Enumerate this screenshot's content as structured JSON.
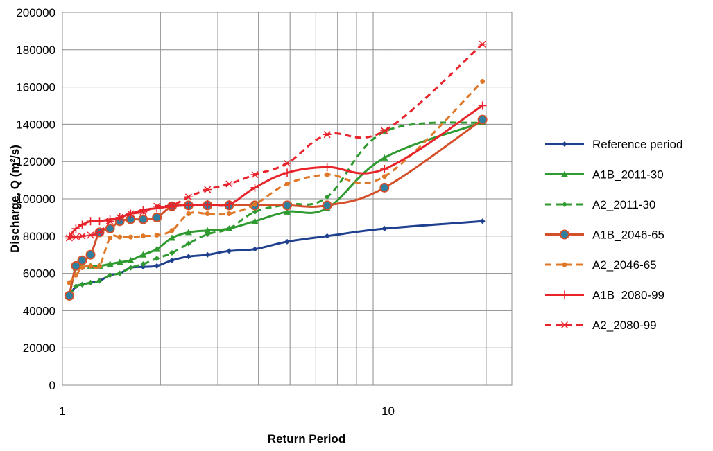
{
  "chart_data": {
    "type": "line",
    "title": "",
    "xlabel": "Return Period",
    "ylabel": "Discharge, Q (m²/s)",
    "x_scale": "log",
    "xlim": [
      1,
      24
    ],
    "ylim": [
      0,
      200000
    ],
    "x_ticks": [
      "1",
      "10"
    ],
    "y_ticks": [
      "0",
      "20000",
      "40000",
      "60000",
      "80000",
      "100000",
      "120000",
      "140000",
      "160000",
      "180000",
      "200000"
    ],
    "grid": "on",
    "legend_position": "right",
    "x": [
      1.05,
      1.1,
      1.15,
      1.22,
      1.3,
      1.4,
      1.5,
      1.62,
      1.77,
      1.95,
      2.17,
      2.44,
      2.79,
      3.25,
      3.9,
      4.9,
      6.5,
      9.75,
      19.5
    ],
    "series": [
      {
        "name": "Reference period",
        "color": "#1f3f8f",
        "dash": "solid",
        "marker": "diamond",
        "values": [
          48000,
          53000,
          54000,
          55000,
          56000,
          59000,
          60000,
          63000,
          63500,
          64000,
          67000,
          69000,
          70000,
          72000,
          73000,
          77000,
          80000,
          84000,
          88000
        ]
      },
      {
        "name": "A1B_2011-30",
        "color": "#2f9a2f",
        "dash": "solid",
        "marker": "triangle",
        "values": [
          48000,
          63000,
          63500,
          64000,
          64000,
          65000,
          66000,
          67000,
          70000,
          73000,
          79000,
          82000,
          83000,
          84000,
          88000,
          93000,
          95000,
          122000,
          141000
        ]
      },
      {
        "name": "A2_2011-30",
        "color": "#2f9a2f",
        "dash": "dashed",
        "marker": "diamond",
        "values": [
          48000,
          53000,
          54000,
          55000,
          56000,
          59000,
          60000,
          63000,
          65000,
          68000,
          71000,
          76000,
          81000,
          84000,
          93000,
          97000,
          101000,
          136000,
          141000
        ]
      },
      {
        "name": "A1B_2046-65",
        "color": "#d4502a",
        "dash": "solid",
        "marker": "circle",
        "values": [
          48000,
          64000,
          67000,
          70000,
          82000,
          84000,
          88000,
          89000,
          89000,
          90000,
          96000,
          96500,
          96500,
          96500,
          96500,
          96500,
          96500,
          106000,
          142500
        ]
      },
      {
        "name": "A2_2046-65",
        "color": "#e0782a",
        "dash": "dashed",
        "marker": "dot",
        "values": [
          55000,
          59000,
          63000,
          64000,
          64000,
          79000,
          79500,
          79500,
          80000,
          80500,
          83000,
          92000,
          92000,
          92000,
          97000,
          108000,
          113000,
          112000,
          163000
        ]
      },
      {
        "name": "A1B_2080-99",
        "color": "#e8232a",
        "dash": "solid",
        "marker": "plus",
        "values": [
          80000,
          84000,
          86000,
          88000,
          88000,
          89000,
          90000,
          92000,
          94000,
          95000,
          96000,
          96500,
          97000,
          97000,
          106000,
          114000,
          117000,
          116000,
          150000
        ]
      },
      {
        "name": "A2_2080-99",
        "color": "#e8232a",
        "dash": "dashed",
        "marker": "star",
        "values": [
          79000,
          79500,
          80000,
          80500,
          82000,
          88000,
          90000,
          92000,
          93000,
          96000,
          96500,
          101000,
          105000,
          108000,
          113000,
          119000,
          134500,
          136500,
          183000
        ]
      }
    ]
  }
}
